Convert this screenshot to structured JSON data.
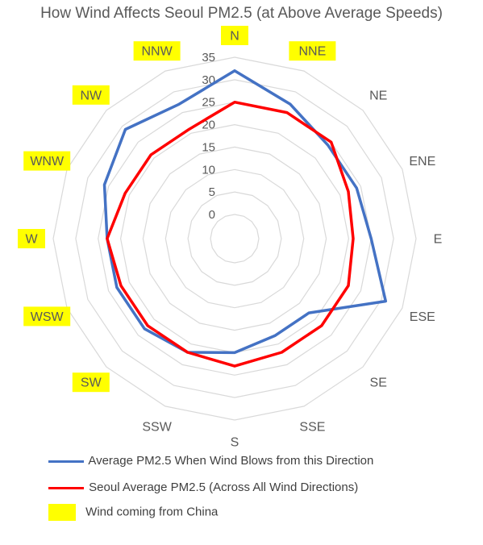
{
  "chart_data": {
    "type": "radar",
    "title": "How Wind Affects Seoul PM2.5 (at Above Average Speeds)",
    "categories": [
      "N",
      "NNE",
      "NE",
      "ENE",
      "E",
      "ESE",
      "SE",
      "SSE",
      "S",
      "SSW",
      "SW",
      "WSW",
      "W",
      "WNW",
      "NW",
      "NNW"
    ],
    "r_ticks": [
      "0",
      "5",
      "10",
      "15",
      "20",
      "25",
      "30",
      "35"
    ],
    "rlim": [
      0,
      35
    ],
    "grid": true,
    "series": [
      {
        "name": "Average PM2.5 When Wind Blows from this Direction",
        "color": "#4472C4",
        "values": [
          32,
          27,
          24,
          24,
          25,
          31,
          18,
          18,
          20,
          22,
          23,
          23,
          23,
          26,
          29,
          27
        ]
      },
      {
        "name": "Seoul Average PM2.5 (Across All Wind Directions)",
        "color": "#FF0000",
        "values": [
          25,
          25,
          25,
          22,
          21,
          22,
          22,
          22,
          23,
          22,
          22,
          22,
          23,
          21,
          21,
          21
        ]
      }
    ],
    "highlighted_categories": [
      "N",
      "NNE",
      "NNW",
      "NW",
      "WNW",
      "W",
      "WSW",
      "SW"
    ],
    "highlight_color": "#FFFF00",
    "highlight_label": "Wind coming from China",
    "legend_position": "bottom"
  }
}
